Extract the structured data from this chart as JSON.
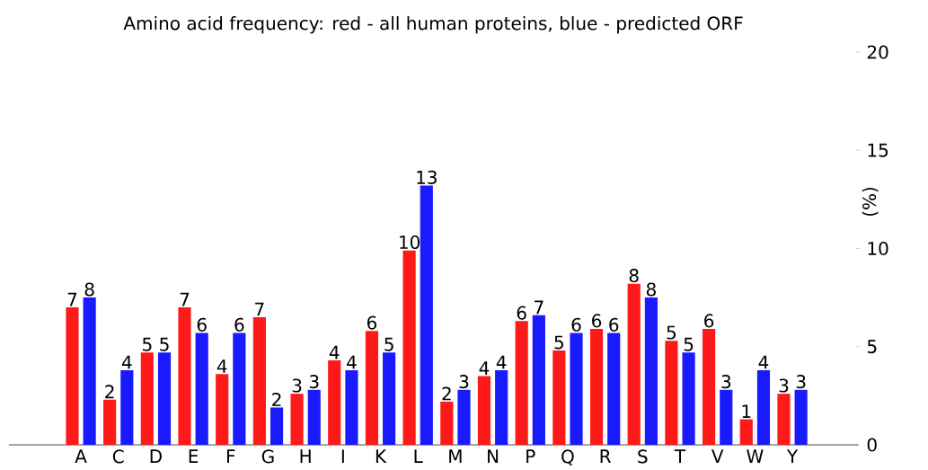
{
  "chart_data": {
    "type": "bar",
    "title": "Amino acid frequency: red - all human proteins, blue - predicted ORF",
    "ylabel": "(%)",
    "categories": [
      "A",
      "C",
      "D",
      "E",
      "F",
      "G",
      "H",
      "I",
      "K",
      "L",
      "M",
      "N",
      "P",
      "Q",
      "R",
      "S",
      "T",
      "V",
      "W",
      "Y"
    ],
    "ylim": [
      0,
      20
    ],
    "yticks": [
      0,
      5,
      10,
      15,
      20
    ],
    "series": [
      {
        "color": "#ff1a1a",
        "values": [
          7.0,
          2.3,
          4.7,
          7.0,
          3.6,
          6.5,
          2.6,
          4.3,
          5.8,
          9.9,
          2.2,
          3.5,
          6.3,
          4.8,
          5.9,
          8.2,
          5.3,
          5.9,
          1.3,
          2.6
        ],
        "value_labels": [
          "7",
          "2",
          "5",
          "7",
          "4",
          "7",
          "3",
          "4",
          "6",
          "10",
          "2",
          "4",
          "6",
          "5",
          "6",
          "8",
          "5",
          "6",
          "1",
          "3"
        ]
      },
      {
        "color": "#1a1aff",
        "values": [
          7.5,
          3.8,
          4.7,
          5.7,
          5.7,
          1.9,
          2.8,
          3.8,
          4.7,
          13.2,
          2.8,
          3.8,
          6.6,
          5.7,
          5.7,
          7.5,
          4.7,
          2.8,
          3.8,
          2.8
        ],
        "value_labels": [
          "8",
          "4",
          "5",
          "6",
          "6",
          "2",
          "3",
          "4",
          "5",
          "13",
          "3",
          "4",
          "7",
          "6",
          "6",
          "8",
          "5",
          "3",
          "4",
          "3"
        ]
      }
    ]
  }
}
